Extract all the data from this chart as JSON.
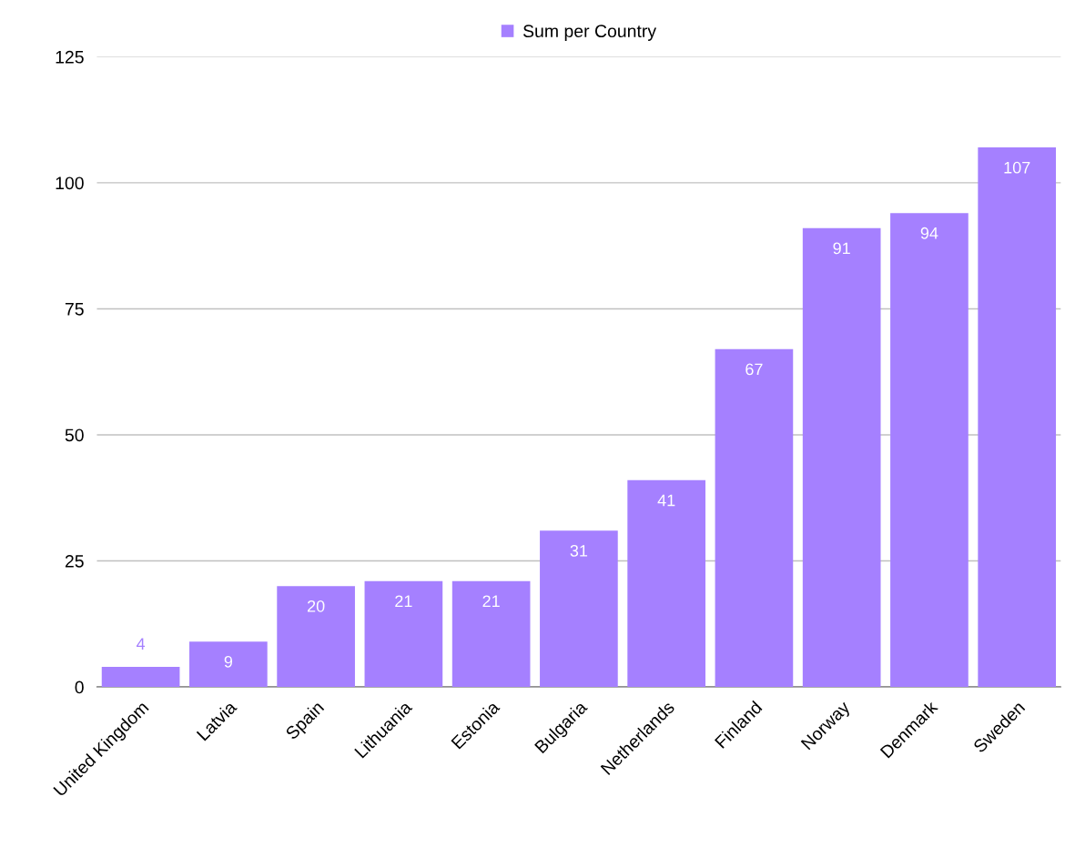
{
  "chart_data": {
    "type": "bar",
    "categories": [
      "United Kingdom",
      "Latvia",
      "Spain",
      "Lithuania",
      "Estonia",
      "Bulgaria",
      "Netherlands",
      "Finland",
      "Norway",
      "Denmark",
      "Sweden"
    ],
    "series": [
      {
        "name": "Sum per Country",
        "color": "#a580ff",
        "values": [
          4,
          9,
          20,
          21,
          21,
          31,
          41,
          67,
          91,
          94,
          107
        ]
      }
    ],
    "ylim": [
      0,
      125
    ],
    "yticks": [
      0,
      25,
      50,
      75,
      100,
      125
    ],
    "grid": "y",
    "legend": "top",
    "data_labels": true
  }
}
